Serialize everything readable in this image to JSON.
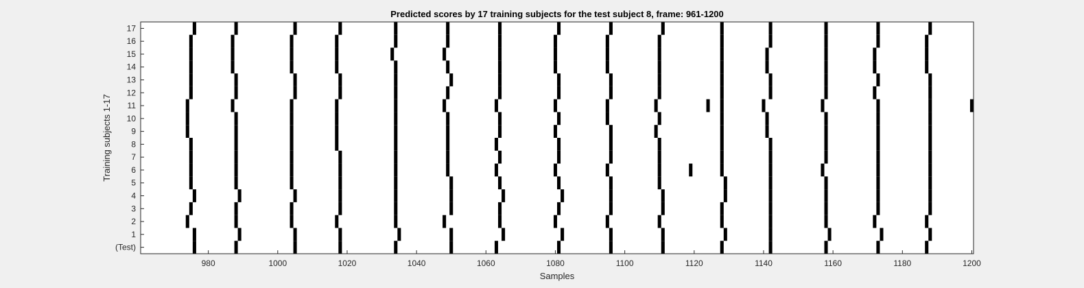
{
  "chart_data": {
    "type": "heatmap",
    "title": "Predicted scores by 17 training subjects for the test subject 8, frame: 961-1200",
    "xlabel": "Samples",
    "ylabel": "Training subjects 1-17",
    "xlim": [
      961,
      1200
    ],
    "xticks": [
      980,
      1000,
      1020,
      1040,
      1060,
      1080,
      1100,
      1120,
      1140,
      1160,
      1180,
      1200
    ],
    "rows": [
      "(Test)",
      "1",
      "2",
      "3",
      "4",
      "5",
      "6",
      "7",
      "8",
      "9",
      "10",
      "11",
      "12",
      "13",
      "14",
      "15",
      "16",
      "17"
    ],
    "grid": false,
    "colors": {
      "background": "#ffffff",
      "mark": "#000000",
      "figure": "#f0f0f0"
    },
    "row_marks": [
      [
        976,
        988,
        1005,
        1018,
        1034,
        1050,
        1063,
        1081,
        1096,
        1111,
        1128,
        1142,
        1158,
        1173,
        1187
      ],
      [
        976,
        989,
        1005,
        1018,
        1035,
        1050,
        1065,
        1082,
        1096,
        1111,
        1129,
        1142,
        1159,
        1174,
        1188
      ],
      [
        974,
        988,
        1004,
        1017,
        1034,
        1048,
        1064,
        1080,
        1095,
        1110,
        1128,
        1142,
        1158,
        1172,
        1187
      ],
      [
        975,
        988,
        1004,
        1018,
        1034,
        1050,
        1064,
        1081,
        1096,
        1111,
        1128,
        1142,
        1158,
        1173,
        1188
      ],
      [
        976,
        989,
        1005,
        1018,
        1034,
        1050,
        1065,
        1082,
        1096,
        1111,
        1129,
        1142,
        1158,
        1173,
        1188
      ],
      [
        975,
        988,
        1004,
        1018,
        1034,
        1050,
        1064,
        1081,
        1096,
        1110,
        1129,
        1142,
        1158,
        1173,
        1188
      ],
      [
        975,
        988,
        1004,
        1018,
        1034,
        1049,
        1063,
        1080,
        1095,
        1110,
        1119,
        1128,
        1142,
        1157,
        1173,
        1188
      ],
      [
        975,
        988,
        1004,
        1018,
        1034,
        1049,
        1064,
        1081,
        1096,
        1110,
        1128,
        1142,
        1158,
        1173,
        1188
      ],
      [
        975,
        988,
        1004,
        1017,
        1034,
        1049,
        1063,
        1081,
        1096,
        1110,
        1128,
        1142,
        1158,
        1173,
        1188
      ],
      [
        974,
        988,
        1004,
        1017,
        1034,
        1049,
        1064,
        1080,
        1096,
        1109,
        1128,
        1141,
        1158,
        1173,
        1188
      ],
      [
        974,
        988,
        1004,
        1017,
        1034,
        1049,
        1064,
        1081,
        1095,
        1110,
        1128,
        1141,
        1158,
        1173,
        1188
      ],
      [
        974,
        987,
        1004,
        1017,
        1034,
        1048,
        1063,
        1080,
        1095,
        1109,
        1124,
        1128,
        1140,
        1157,
        1173,
        1188,
        1200
      ],
      [
        975,
        988,
        1005,
        1018,
        1034,
        1049,
        1064,
        1081,
        1096,
        1110,
        1128,
        1142,
        1158,
        1172,
        1188
      ],
      [
        975,
        988,
        1005,
        1018,
        1034,
        1050,
        1064,
        1081,
        1096,
        1110,
        1128,
        1142,
        1158,
        1173,
        1188
      ],
      [
        975,
        987,
        1004,
        1017,
        1034,
        1049,
        1064,
        1080,
        1095,
        1110,
        1128,
        1141,
        1158,
        1172,
        1187
      ],
      [
        975,
        987,
        1004,
        1017,
        1033,
        1048,
        1064,
        1080,
        1095,
        1110,
        1128,
        1141,
        1158,
        1172,
        1187
      ],
      [
        975,
        987,
        1004,
        1017,
        1034,
        1049,
        1064,
        1080,
        1095,
        1110,
        1128,
        1142,
        1158,
        1173,
        1187
      ],
      [
        976,
        988,
        1005,
        1018,
        1034,
        1049,
        1064,
        1081,
        1096,
        1111,
        1128,
        1142,
        1158,
        1173,
        1188
      ]
    ]
  }
}
